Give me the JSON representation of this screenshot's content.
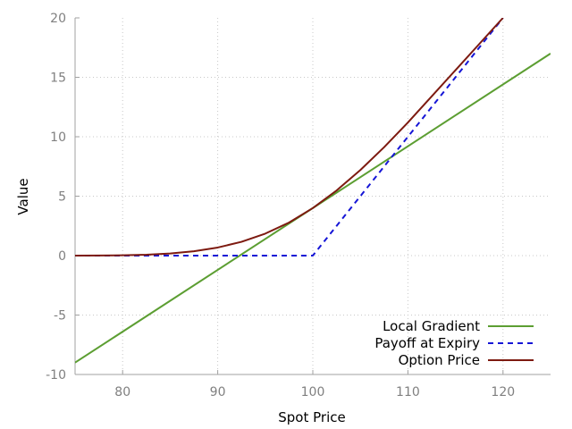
{
  "chart_data": {
    "type": "line",
    "xlabel": "Spot Price",
    "ylabel": "Value",
    "xlim": [
      75,
      125
    ],
    "ylim": [
      -10,
      20
    ],
    "x_ticks": [
      80,
      90,
      100,
      110,
      120
    ],
    "y_ticks": [
      -10,
      -5,
      0,
      5,
      10,
      15,
      20
    ],
    "grid": true,
    "legend_position": "bottom-right",
    "series": [
      {
        "name": "Local Gradient",
        "color": "#5c9e32",
        "style": "solid",
        "x": [
          75,
          125
        ],
        "y": [
          -9.0,
          17.0
        ]
      },
      {
        "name": "Payoff at Expiry",
        "color": "#1515d6",
        "style": "dashed",
        "x": [
          75,
          80,
          85,
          90,
          95,
          100,
          105,
          110,
          115,
          120
        ],
        "y": [
          0,
          0,
          0,
          0,
          0,
          0,
          5,
          10,
          15,
          20
        ]
      },
      {
        "name": "Option Price",
        "color": "#7d1a10",
        "style": "solid",
        "x": [
          75,
          77.5,
          80,
          82.5,
          85,
          87.5,
          90,
          92.5,
          95,
          97.5,
          100,
          102.5,
          105,
          107.5,
          110,
          112.5,
          115,
          117.5,
          120
        ],
        "y": [
          0.0,
          0.01,
          0.03,
          0.08,
          0.18,
          0.37,
          0.68,
          1.16,
          1.85,
          2.78,
          4.0,
          5.48,
          7.2,
          9.12,
          11.2,
          13.4,
          15.6,
          17.8,
          20.0
        ]
      }
    ]
  }
}
